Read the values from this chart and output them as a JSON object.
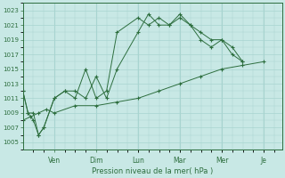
{
  "xlabel": "Pression niveau de la mer( hPa )",
  "bg_color": "#c8e8e5",
  "grid_color": "#a8d4d0",
  "line_color": "#2d6e3e",
  "ylim": [
    1004,
    1024
  ],
  "ytick_vals": [
    1005,
    1007,
    1009,
    1011,
    1013,
    1015,
    1017,
    1019,
    1021,
    1023
  ],
  "xtick_positions": [
    2.0,
    4.67,
    7.33,
    10.0,
    12.67,
    15.33
  ],
  "xtick_labels": [
    "Ven",
    "Dim",
    "Lun",
    "Mar",
    "Mer",
    "Je"
  ],
  "xmin": 0.0,
  "xmax": 16.5,
  "line1_x": [
    0.0,
    0.33,
    0.67,
    1.0,
    1.33,
    2.0,
    2.67,
    3.33,
    4.0,
    4.67,
    5.33,
    6.0,
    7.33,
    8.0,
    8.67,
    9.33,
    10.0,
    10.67,
    11.33,
    12.0,
    12.67,
    13.33,
    14.0
  ],
  "line1_y": [
    1012,
    1009,
    1008,
    1006,
    1007,
    1011,
    1012,
    1011,
    1015,
    1011,
    1012,
    1020,
    1022,
    1021,
    1022,
    1021,
    1022,
    1021,
    1020,
    1019,
    1019,
    1017,
    1016
  ],
  "line2_x": [
    0.0,
    0.33,
    0.67,
    1.0,
    1.33,
    2.0,
    2.67,
    3.33,
    4.0,
    4.67,
    5.33,
    6.0,
    7.33,
    8.0,
    8.67,
    9.33,
    10.0,
    10.67,
    11.33,
    12.0,
    12.67,
    13.33,
    14.0
  ],
  "line2_y": [
    1012,
    1009,
    1009,
    1006,
    1007,
    1011,
    1012,
    1012,
    1011,
    1014,
    1011,
    1015,
    1020,
    1022.5,
    1021,
    1021,
    1022.5,
    1021,
    1019,
    1018,
    1019,
    1018,
    1016
  ],
  "line3_x": [
    0.0,
    0.5,
    1.0,
    1.5,
    2.0,
    3.33,
    4.67,
    6.0,
    7.33,
    8.67,
    10.0,
    11.33,
    12.67,
    14.0,
    15.33
  ],
  "line3_y": [
    1008,
    1008.5,
    1009,
    1009.5,
    1009,
    1010,
    1010,
    1010.5,
    1011,
    1012,
    1013,
    1014,
    1015,
    1015.5,
    1016
  ]
}
